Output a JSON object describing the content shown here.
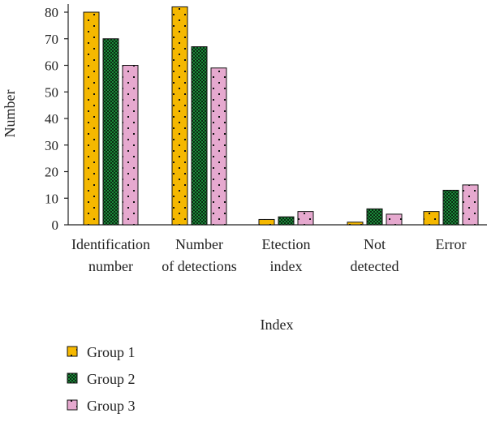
{
  "chart_data": {
    "type": "bar",
    "title": "",
    "xlabel": "Index",
    "ylabel": "Number",
    "ylim": [
      0,
      80
    ],
    "yticks": [
      0,
      10,
      20,
      30,
      40,
      50,
      60,
      70,
      80
    ],
    "grid": false,
    "legend_position": "bottom-left",
    "categories": [
      [
        "Identification",
        "number"
      ],
      [
        "Number",
        "of detections"
      ],
      [
        "Etection",
        "index"
      ],
      [
        "Not",
        "detected"
      ],
      [
        "Error"
      ]
    ],
    "series": [
      {
        "name": "Group 1",
        "values": [
          80,
          82,
          2,
          1,
          5
        ],
        "color": "#f5b800",
        "pattern": "dots-sparse"
      },
      {
        "name": "Group 2",
        "values": [
          70,
          67,
          3,
          6,
          13
        ],
        "color": "#1a8a3a",
        "pattern": "checker"
      },
      {
        "name": "Group 3",
        "values": [
          60,
          59,
          5,
          4,
          15
        ],
        "color": "#e6a9cf",
        "pattern": "dots-sparse"
      }
    ]
  }
}
